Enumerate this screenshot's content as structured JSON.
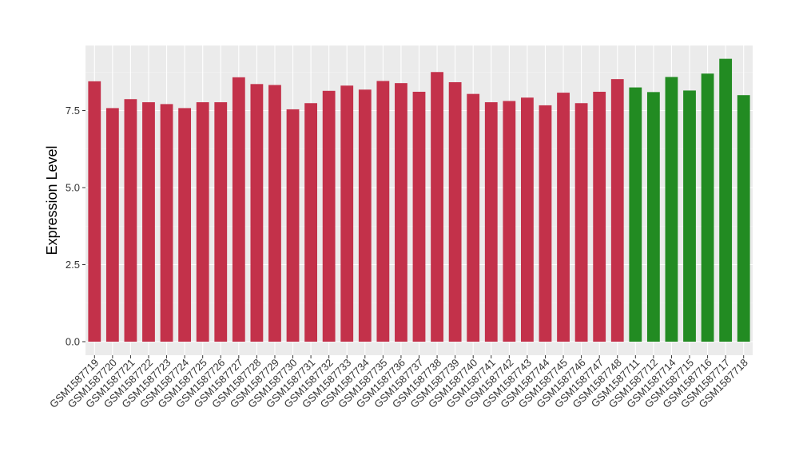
{
  "chart_data": {
    "type": "bar",
    "title": "",
    "xlabel": "",
    "ylabel": "Expression Level",
    "ylim": [
      0,
      9.45
    ],
    "yticks": [
      0.0,
      2.5,
      5.0,
      7.5
    ],
    "ytick_labels": [
      "0.0",
      "2.5",
      "5.0",
      "7.5"
    ],
    "grid": true,
    "legend": "none",
    "background_color": "#ebebeb",
    "categories": [
      "GSM1587719",
      "GSM1587720",
      "GSM1587721",
      "GSM1587722",
      "GSM1587723",
      "GSM1587724",
      "GSM1587725",
      "GSM1587726",
      "GSM1587727",
      "GSM1587728",
      "GSM1587729",
      "GSM1587730",
      "GSM1587731",
      "GSM1587732",
      "GSM1587733",
      "GSM1587734",
      "GSM1587735",
      "GSM1587736",
      "GSM1587737",
      "GSM1587738",
      "GSM1587739",
      "GSM1587740",
      "GSM1587741",
      "GSM1587742",
      "GSM1587743",
      "GSM1587744",
      "GSM1587745",
      "GSM1587746",
      "GSM1587747",
      "GSM1587748",
      "GSM1587711",
      "GSM1587712",
      "GSM1587714",
      "GSM1587715",
      "GSM1587716",
      "GSM1587717",
      "GSM1587718"
    ],
    "values": [
      8.45,
      7.58,
      7.87,
      7.77,
      7.71,
      7.58,
      7.77,
      7.77,
      8.58,
      8.36,
      8.33,
      7.54,
      7.74,
      8.14,
      8.31,
      8.18,
      8.46,
      8.39,
      8.11,
      8.75,
      8.42,
      8.04,
      7.77,
      7.81,
      7.92,
      7.67,
      8.08,
      7.74,
      8.11,
      8.52,
      8.25,
      8.1,
      8.59,
      8.15,
      8.7,
      9.18,
      8.0
    ],
    "bar_colors": [
      "#c3314a",
      "#c3314a",
      "#c3314a",
      "#c3314a",
      "#c3314a",
      "#c3314a",
      "#c3314a",
      "#c3314a",
      "#c3314a",
      "#c3314a",
      "#c3314a",
      "#c3314a",
      "#c3314a",
      "#c3314a",
      "#c3314a",
      "#c3314a",
      "#c3314a",
      "#c3314a",
      "#c3314a",
      "#c3314a",
      "#c3314a",
      "#c3314a",
      "#c3314a",
      "#c3314a",
      "#c3314a",
      "#c3314a",
      "#c3314a",
      "#c3314a",
      "#c3314a",
      "#c3314a",
      "#228b22",
      "#228b22",
      "#228b22",
      "#228b22",
      "#228b22",
      "#228b22",
      "#228b22"
    ]
  }
}
